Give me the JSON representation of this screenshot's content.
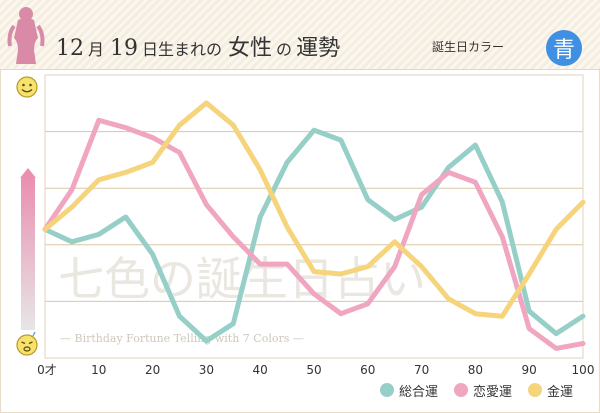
{
  "header": {
    "month": "12",
    "month_unit": "月",
    "day": "19",
    "day_unit": "日生まれの",
    "title_main": "女性",
    "title_particle": "の",
    "title_tail": "運勢",
    "birthday_color_label": "誕生日カラー",
    "birthday_color_char": "青",
    "birthday_color_hex": "#3f8fe3"
  },
  "watermark": {
    "main": "七色の誕生日占い",
    "sub": "— Birthday Fortune Telling with 7 Colors —"
  },
  "colors": {
    "overall": "#96cfc7",
    "love": "#f0a6c0",
    "money": "#f5d47c",
    "grid": "#d9c7a6"
  },
  "chart_data": {
    "type": "line",
    "x": [
      0,
      5,
      10,
      15,
      20,
      25,
      30,
      35,
      40,
      45,
      50,
      55,
      60,
      65,
      70,
      75,
      80,
      85,
      90,
      95,
      100
    ],
    "tick_labels": [
      "0才",
      "10",
      "20",
      "30",
      "40",
      "50",
      "60",
      "70",
      "80",
      "90",
      "100"
    ],
    "tick_values": [
      0,
      10,
      20,
      30,
      40,
      50,
      60,
      70,
      80,
      90,
      100
    ],
    "xlim": [
      0,
      100
    ],
    "ylim": [
      0,
      100
    ],
    "grid": true,
    "y_axis_icons": {
      "top": "smile-face-icon",
      "bottom": "worried-face-icon"
    },
    "legend_position": "bottom-right",
    "series": [
      {
        "name": "総合運",
        "key": "overall",
        "values": [
          45,
          40,
          43,
          50,
          35,
          10,
          0,
          7,
          50,
          72,
          85,
          81,
          57,
          49,
          54,
          70,
          79,
          56,
          12,
          3,
          10
        ]
      },
      {
        "name": "恋愛運",
        "key": "love",
        "values": [
          45,
          61,
          89,
          86,
          82,
          76,
          55,
          42,
          31,
          31,
          19,
          11,
          15,
          30,
          59,
          68,
          64,
          42,
          5,
          -3,
          -1
        ]
      },
      {
        "name": "金運",
        "key": "money",
        "values": [
          45,
          54,
          65,
          68,
          72,
          87,
          96,
          87,
          69,
          46,
          28,
          27,
          30,
          40,
          30,
          17,
          11,
          10,
          27,
          45,
          56
        ]
      }
    ]
  }
}
